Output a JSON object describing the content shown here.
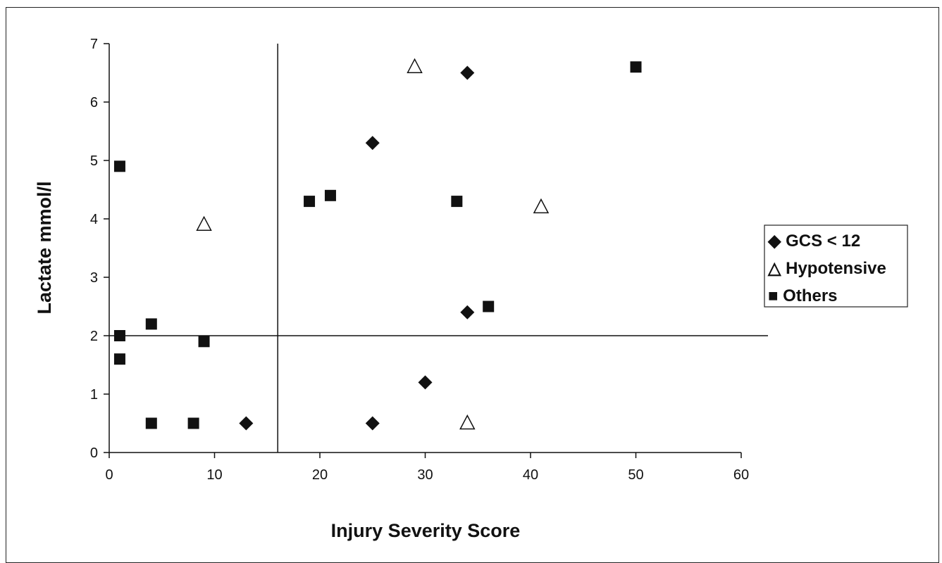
{
  "chart_data": {
    "type": "scatter",
    "title": "",
    "xlabel": "Injury Severity Score",
    "ylabel": "Lactate mmol/l",
    "xlim": [
      0,
      60
    ],
    "ylim": [
      0,
      7
    ],
    "xticks": [
      0,
      10,
      20,
      30,
      40,
      50,
      60
    ],
    "yticks": [
      0,
      1,
      2,
      3,
      4,
      5,
      6,
      7
    ],
    "grid": false,
    "legend_position": "right",
    "reference_lines": [
      {
        "orientation": "vertical",
        "x": 16
      },
      {
        "orientation": "horizontal",
        "y": 2
      }
    ],
    "series": [
      {
        "name": "GCS < 12",
        "marker": "diamond",
        "color": "#111111",
        "legend_label": "◆ GCS < 12",
        "points": [
          [
            34,
            6.5
          ],
          [
            25,
            5.3
          ],
          [
            34,
            2.4
          ],
          [
            30,
            1.2
          ],
          [
            13,
            0.5
          ],
          [
            25,
            0.5
          ]
        ]
      },
      {
        "name": "Hypotensive",
        "marker": "triangle-open",
        "color": "#111111",
        "legend_label": "△ Hypotensive",
        "points": [
          [
            29,
            6.6
          ],
          [
            9,
            3.9
          ],
          [
            41,
            4.2
          ],
          [
            34,
            0.5
          ]
        ]
      },
      {
        "name": "Others",
        "marker": "square",
        "color": "#111111",
        "legend_label": "■ Others",
        "points": [
          [
            50,
            6.6
          ],
          [
            1,
            4.9
          ],
          [
            19,
            4.3
          ],
          [
            21,
            4.4
          ],
          [
            33,
            4.3
          ],
          [
            36,
            2.5
          ],
          [
            1,
            2.0
          ],
          [
            4,
            2.2
          ],
          [
            9,
            1.9
          ],
          [
            1,
            1.6
          ],
          [
            4,
            0.5
          ],
          [
            8,
            0.5
          ]
        ]
      }
    ]
  }
}
